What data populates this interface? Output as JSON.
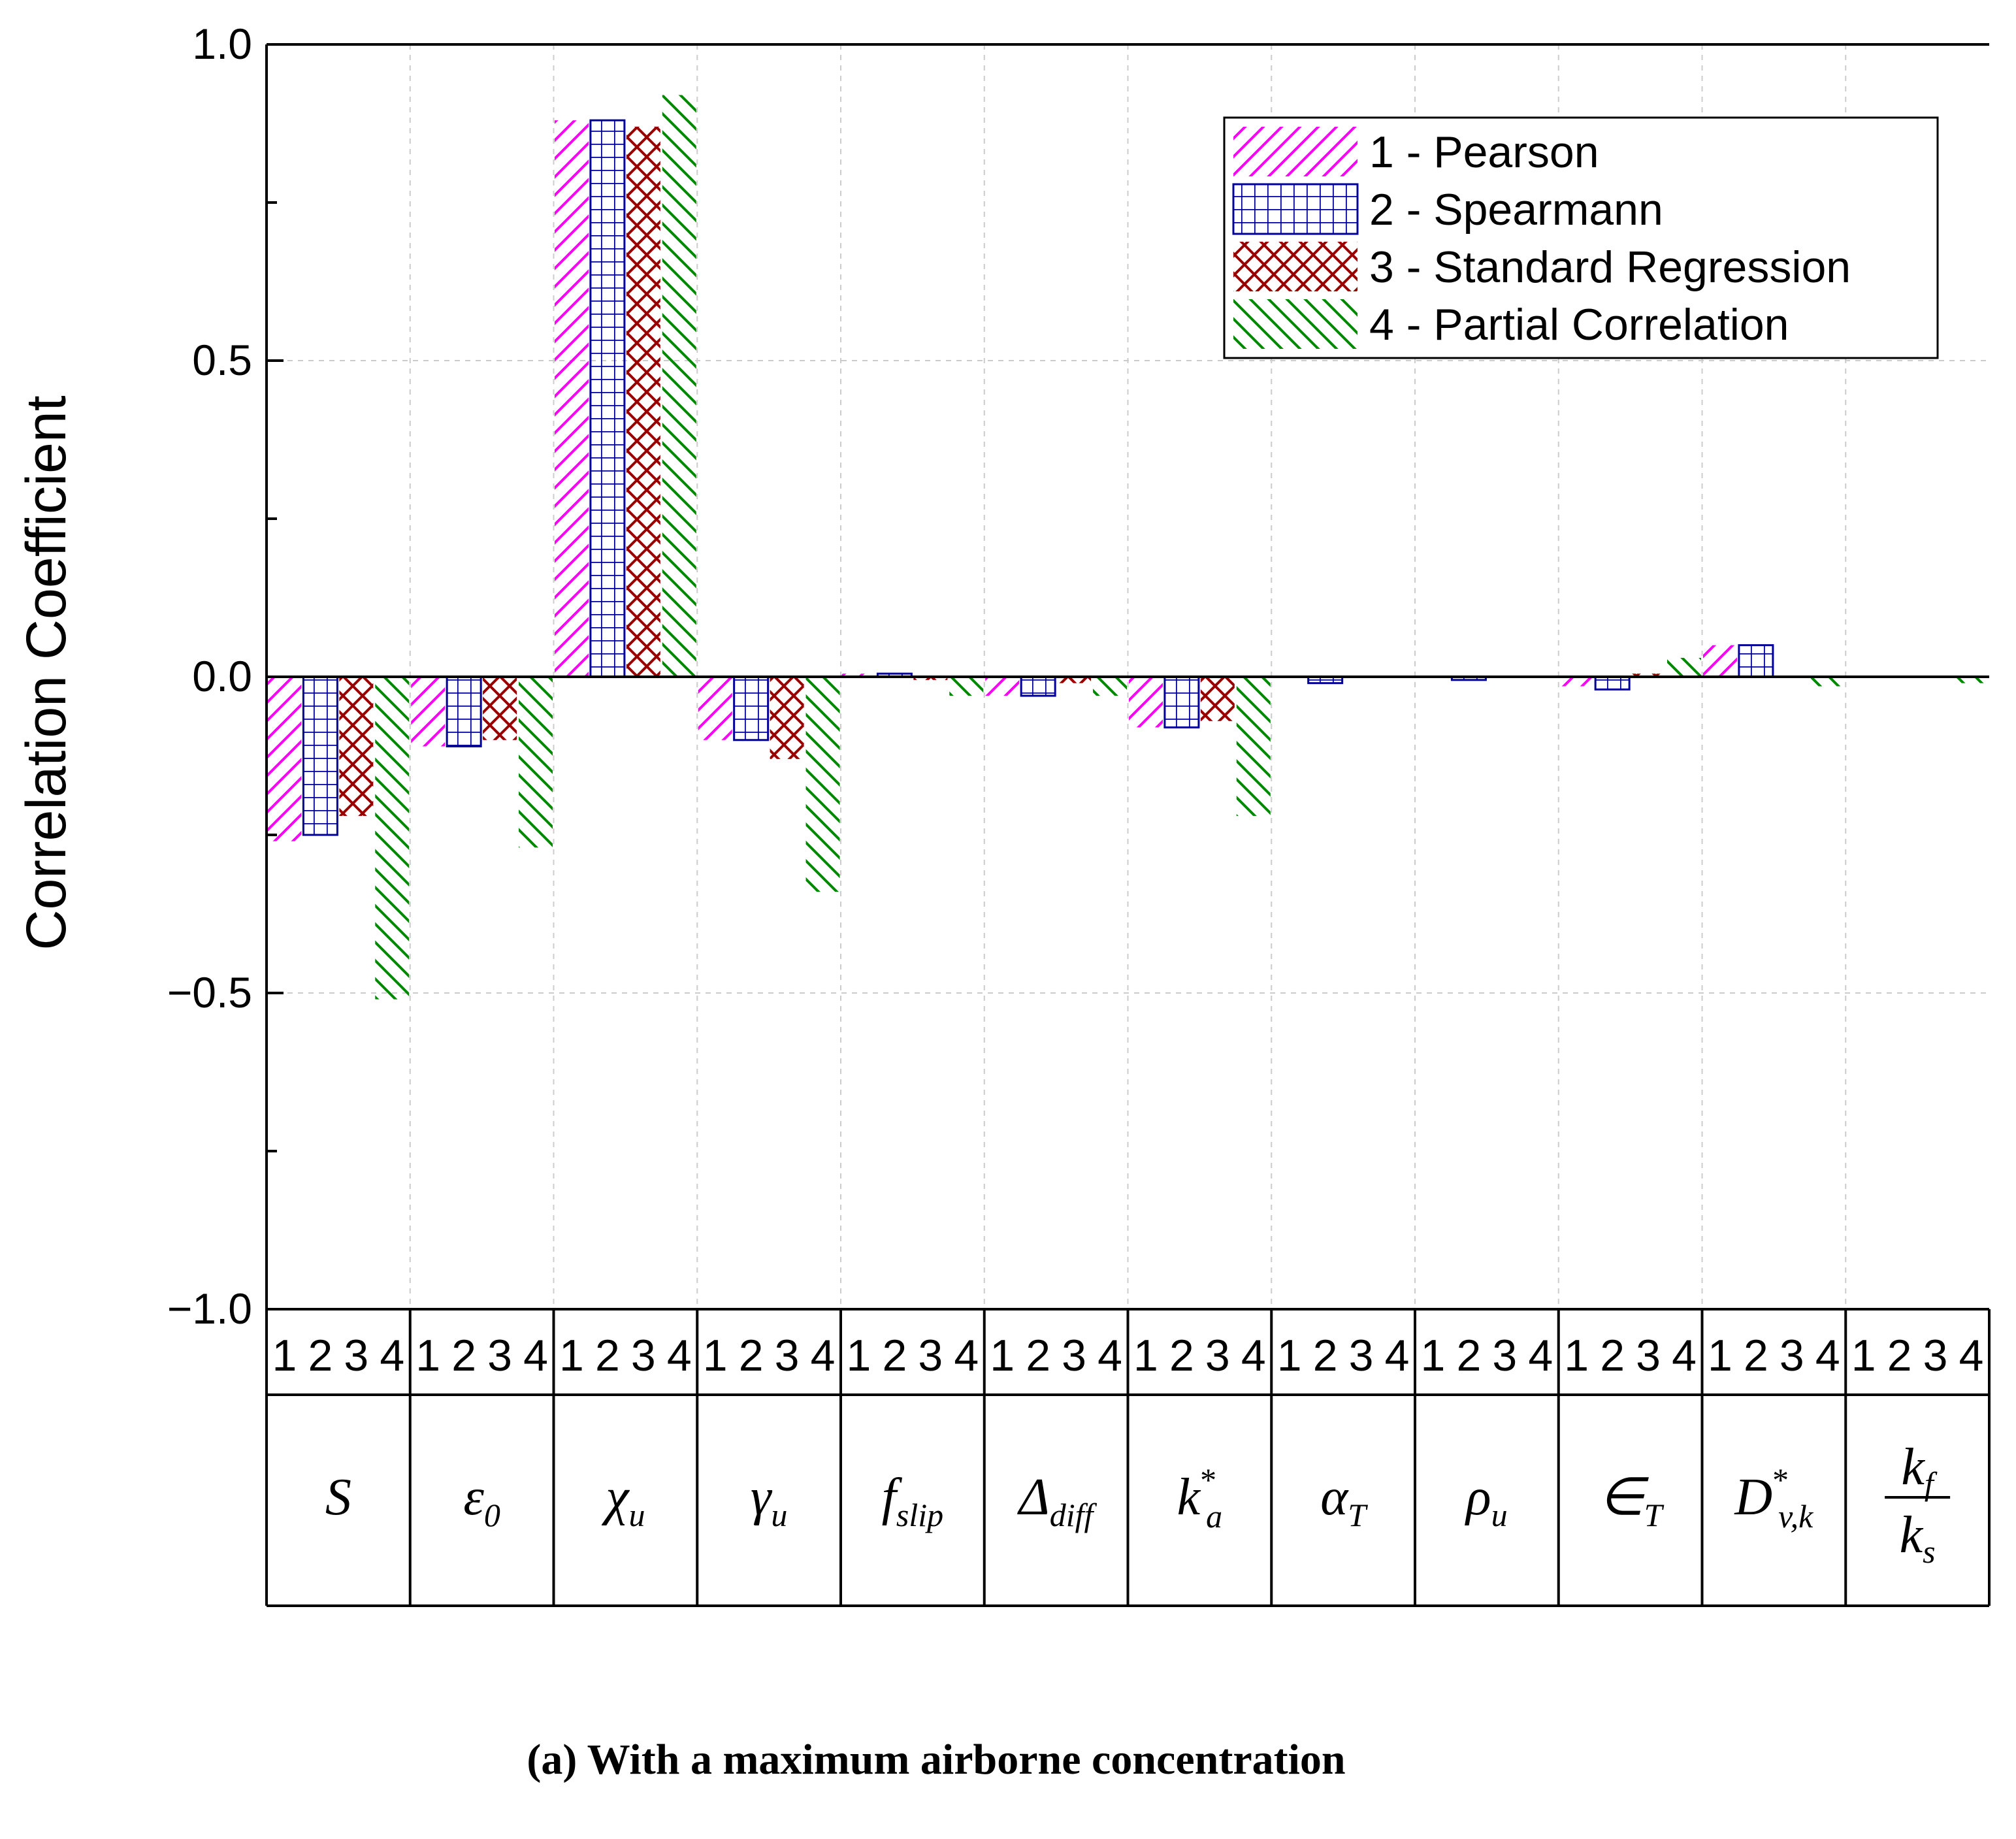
{
  "chart_data": {
    "type": "bar",
    "ylabel": "Correlation Coefficient",
    "ylim": [
      -1.0,
      1.0
    ],
    "yticks": [
      {
        "value": 1.0,
        "label": "1.0"
      },
      {
        "value": 0.5,
        "label": "0.5"
      },
      {
        "value": 0.0,
        "label": "0.0"
      },
      {
        "value": -0.5,
        "label": "−0.5"
      },
      {
        "value": -1.0,
        "label": "−1.0"
      }
    ],
    "grid": true,
    "legend_position": "top-right",
    "sub_labels": [
      "1",
      "2",
      "3",
      "4"
    ],
    "categories": [
      {
        "base": "S"
      },
      {
        "base": "ε",
        "sub": "0"
      },
      {
        "base": "χ",
        "sub": "u"
      },
      {
        "base": "γ",
        "sub": "u"
      },
      {
        "base": "f",
        "sub": "slip"
      },
      {
        "base": "Δ",
        "sub": "diff"
      },
      {
        "base": "k",
        "sub": "a",
        "sup": "*"
      },
      {
        "base": "α",
        "sub": "T"
      },
      {
        "base": "ρ",
        "sub": "u"
      },
      {
        "base": "∈",
        "sub": "T"
      },
      {
        "base": "D",
        "sub": "v,k",
        "sup": "*"
      },
      {
        "base": "k",
        "sub": "f",
        "den_base": "k",
        "den_sub": "s"
      }
    ],
    "series": [
      {
        "name": "1 - Pearson",
        "color": "#ff00ff",
        "pattern": "diag-up",
        "values": [
          -0.26,
          -0.11,
          0.88,
          -0.1,
          0.005,
          -0.03,
          -0.08,
          0.0,
          0.0,
          -0.015,
          0.05,
          0.0
        ]
      },
      {
        "name": "2 - Spearmann",
        "color": "#000099",
        "pattern": "grid",
        "values": [
          -0.25,
          -0.11,
          0.88,
          -0.1,
          0.005,
          -0.03,
          -0.08,
          -0.01,
          -0.005,
          -0.02,
          0.05,
          0.0
        ]
      },
      {
        "name": "3 - Standard Regression",
        "color": "#990000",
        "pattern": "crosshatch",
        "values": [
          -0.22,
          -0.1,
          0.87,
          -0.13,
          -0.005,
          -0.01,
          -0.07,
          0.0,
          0.0,
          0.005,
          0.0,
          0.0
        ]
      },
      {
        "name": "4 - Partial Correlation",
        "color": "#008800",
        "pattern": "diag-down",
        "values": [
          -0.51,
          -0.27,
          0.92,
          -0.34,
          -0.03,
          -0.03,
          -0.22,
          0.0,
          0.0,
          0.03,
          -0.015,
          -0.01
        ]
      }
    ],
    "caption": "(a) With a maximum airborne concentration"
  }
}
